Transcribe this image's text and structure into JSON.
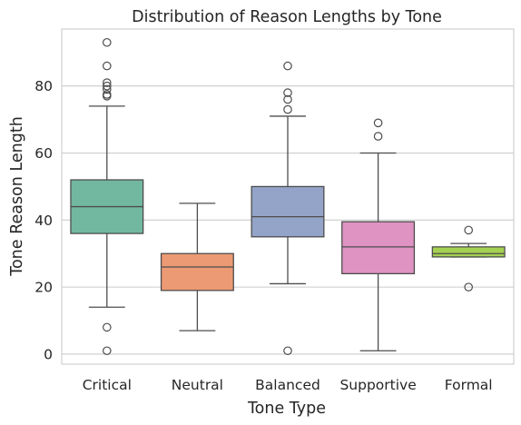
{
  "chart_data": {
    "type": "box",
    "title": "Distribution of Reason Lengths by Tone",
    "xlabel": "Tone Type",
    "ylabel": "Tone Reason Length",
    "ylim": [
      -3,
      97
    ],
    "yticks": [
      0,
      20,
      40,
      60,
      80
    ],
    "grid": true,
    "legend": "none",
    "categories": [
      "Critical",
      "Neutral",
      "Balanced",
      "Supportive",
      "Formal"
    ],
    "colors": [
      "#72b8a0",
      "#ec9a74",
      "#94a3c8",
      "#df93c2",
      "#a5d152"
    ],
    "boxes": [
      {
        "category": "Critical",
        "whisker_low": 14,
        "q1": 36,
        "median": 44,
        "q3": 52,
        "whisker_high": 74,
        "outliers": [
          1,
          8,
          77,
          77.5,
          79,
          80,
          81,
          86,
          93
        ]
      },
      {
        "category": "Neutral",
        "whisker_low": 7,
        "q1": 19,
        "median": 26,
        "q3": 30,
        "whisker_high": 45,
        "outliers": []
      },
      {
        "category": "Balanced",
        "whisker_low": 21,
        "q1": 35,
        "median": 41,
        "q3": 50,
        "whisker_high": 71,
        "outliers": [
          1,
          73,
          76,
          78,
          86
        ]
      },
      {
        "category": "Supportive",
        "whisker_low": 1,
        "q1": 24,
        "median": 32,
        "q3": 39.5,
        "whisker_high": 60,
        "outliers": [
          65,
          69
        ]
      },
      {
        "category": "Formal",
        "whisker_low": 29,
        "q1": 29,
        "median": 30,
        "q3": 32,
        "whisker_high": 33,
        "outliers": [
          20,
          37
        ]
      }
    ]
  }
}
